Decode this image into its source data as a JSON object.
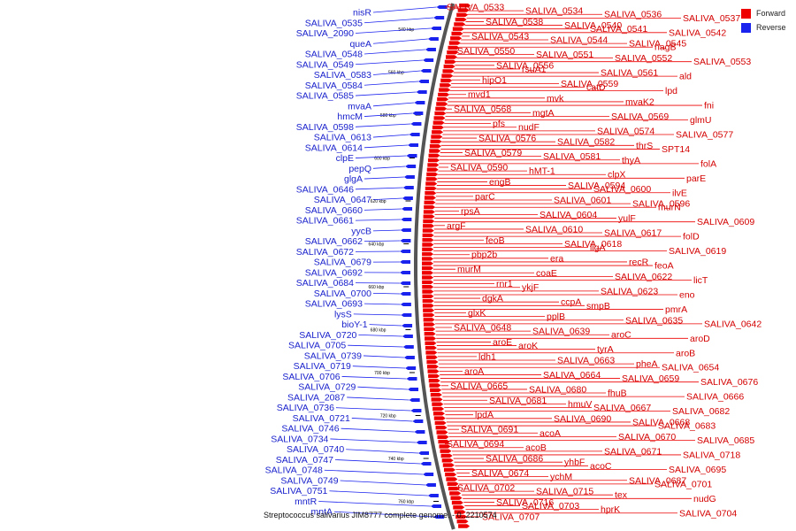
{
  "colors": {
    "forward": "#ee0000",
    "reverse": "#1a22ee",
    "axis": "#555555"
  },
  "legend": [
    {
      "label": "Forward",
      "color": "#ee0000"
    },
    {
      "label": "Reverse",
      "color": "#1a22ee"
    }
  ],
  "caption": "Streptococcus salivarius JIM8777 complete genome. - 0..2210574",
  "ticks": [
    "540 kbp",
    "560 kbp",
    "580 kbp",
    "600 kbp",
    "620 kbp",
    "640 kbp",
    "660 kbp",
    "680 kbp",
    "700 kbp",
    "720 kbp",
    "740 kbp",
    "760 kbp"
  ],
  "forward_labels": [
    "SALIVA_0533",
    "SALIVA_0534",
    "SALIVA_0536",
    "SALIVA_0537",
    "SALIVA_0538",
    "SALIVA_0540",
    "SALIVA_0541",
    "SALIVA_0542",
    "SALIVA_0543",
    "SALIVA_0544",
    "SALIVA_0545",
    "nagB",
    "SALIVA_0550",
    "SALIVA_0551",
    "SALIVA_0552",
    "SALIVA_0553",
    "SALIVA_0556",
    "rsuA1",
    "SALIVA_0561",
    "ald",
    "hipO1",
    "SALIVA_0559",
    "catD",
    "lpd",
    "mvd1",
    "mvk",
    "mvaK2",
    "fni",
    "SALIVA_0568",
    "mgtA",
    "SALIVA_0569",
    "glmU",
    "pfs",
    "nudF",
    "SALIVA_0574",
    "SALIVA_0577",
    "SALIVA_0576",
    "SALIVA_0582",
    "thrS",
    "SPT14",
    "SALIVA_0579",
    "SALIVA_0581",
    "thyA",
    "folA",
    "SALIVA_0590",
    "hMT-1",
    "clpX",
    "parE",
    "engB",
    "SALIVA_0594",
    "SALIVA_0600",
    "ilvE",
    "parC",
    "SALIVA_0601",
    "SALIVA_0596",
    "murN",
    "rpsA",
    "SALIVA_0604",
    "yulF",
    "SALIVA_0609",
    "argF",
    "SALIVA_0610",
    "SALIVA_0617",
    "folD",
    "feoB",
    "SALIVA_0618",
    "ligA",
    "SALIVA_0619",
    "pbp2b",
    "era",
    "recR",
    "feoA",
    "murM",
    "coaE",
    "SALIVA_0622",
    "licT",
    "rnr1",
    "ykjF",
    "SALIVA_0623",
    "eno",
    "dgkA",
    "ccpA",
    "smpB",
    "pmrA",
    "glxK",
    "pplB",
    "SALIVA_0635",
    "SALIVA_0642",
    "SALIVA_0648",
    "SALIVA_0639",
    "aroC",
    "aroD",
    "aroE",
    "aroK",
    "tyrA",
    "aroB",
    "ldh1",
    "SALIVA_0663",
    "pheA",
    "SALIVA_0654",
    "aroA",
    "SALIVA_0664",
    "SALIVA_0659",
    "SALIVA_0676",
    "SALIVA_0665",
    "SALIVA_0680",
    "fhuB",
    "SALIVA_0666",
    "SALIVA_0681",
    "hmuV",
    "SALIVA_0667",
    "SALIVA_0682",
    "lpdA",
    "SALIVA_0690",
    "SALIVA_0668",
    "SALIVA_0683",
    "SALIVA_0691",
    "acoA",
    "SALIVA_0670",
    "SALIVA_0685",
    "SALIVA_0694",
    "acoB",
    "SALIVA_0671",
    "SALIVA_0718",
    "SALIVA_0686",
    "yhbF",
    "acoC",
    "SALIVA_0695",
    "SALIVA_0674",
    "ychM",
    "SALIVA_0687",
    "SALIVA_0701",
    "SALIVA_0702",
    "SALIVA_0715",
    "tex",
    "nudG",
    "SALIVA_0716",
    "SALIVA_0703",
    "hprK",
    "SALIVA_0704",
    "SALIVA_0707"
  ],
  "reverse_labels": [
    "nisR",
    "SALIVA_0535",
    "SALIVA_2090",
    "queA",
    "SALIVA_0548",
    "SALIVA_0549",
    "SALIVA_0583",
    "SALIVA_0584",
    "SALIVA_0585",
    "mvaA",
    "hmcM",
    "SALIVA_0598",
    "SALIVA_0613",
    "SALIVA_0614",
    "clpE",
    "pepQ",
    "glgA",
    "SALIVA_0646",
    "SALIVA_0647",
    "SALIVA_0660",
    "SALIVA_0661",
    "yycB",
    "SALIVA_0662",
    "SALIVA_0672",
    "SALIVA_0679",
    "SALIVA_0692",
    "SALIVA_0684",
    "SALIVA_0700",
    "SALIVA_0693",
    "lysS",
    "bioY-1",
    "SALIVA_0720",
    "SALIVA_0705",
    "SALIVA_0739",
    "SALIVA_0719",
    "SALIVA_0706",
    "SALIVA_0729",
    "SALIVA_2087",
    "SALIVA_0736",
    "SALIVA_0721",
    "SALIVA_0746",
    "SALIVA_0734",
    "SALIVA_0740",
    "SALIVA_0747",
    "SALIVA_0748",
    "SALIVA_0749",
    "SALIVA_0751",
    "mntR",
    "mntA"
  ]
}
